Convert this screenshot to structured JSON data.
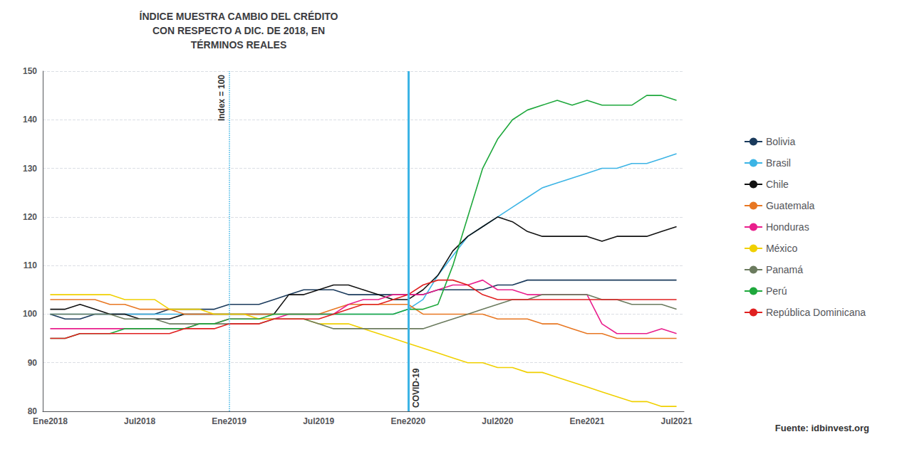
{
  "chart_data": {
    "type": "line",
    "title": "ÍNDICE MUESTRA CAMBIO DEL CRÉDITO\nCON RESPECTO A DIC. DE 2018, EN\nTÉRMINOS REALES",
    "source": "Fuente: idbinvest.org",
    "categories": [
      "Ene2018",
      null,
      null,
      null,
      null,
      null,
      "Jul2018",
      null,
      null,
      null,
      null,
      null,
      "Ene2019",
      null,
      null,
      null,
      null,
      null,
      "Jul2019",
      null,
      null,
      null,
      null,
      null,
      "Ene2020",
      null,
      null,
      null,
      null,
      null,
      "Jul2020",
      null,
      null,
      null,
      null,
      null,
      "Ene2021",
      null,
      null,
      null,
      null,
      null,
      "Jul2021"
    ],
    "ylim": [
      80,
      150
    ],
    "yticks": [
      80,
      90,
      100,
      110,
      120,
      130,
      140,
      150
    ],
    "grid": true,
    "legend": "right",
    "vlines": [
      {
        "x": "Ene2019",
        "label": "Index = 100",
        "color": "#3cb4e5",
        "line_style": "dotted"
      },
      {
        "x": "Ene2020",
        "label": "COVID-19",
        "color": "#3cb4e5",
        "line_style": "solid"
      }
    ],
    "series": [
      {
        "name": "Bolivia",
        "color": "#1a3a5c",
        "values": [
          100,
          99,
          99,
          100,
          100,
          100,
          100,
          100,
          101,
          101,
          101,
          101,
          102,
          102,
          102,
          103,
          104,
          105,
          105,
          105,
          104,
          104,
          104,
          104,
          104,
          104,
          105,
          105,
          105,
          105,
          106,
          106,
          107,
          107,
          107,
          107,
          107,
          107,
          107,
          107,
          107,
          107,
          107
        ]
      },
      {
        "name": "Brasil",
        "color": "#3cb4e5",
        "values": [
          100,
          100,
          100,
          100,
          100,
          100,
          100,
          100,
          100,
          100,
          100,
          100,
          100,
          100,
          100,
          100,
          100,
          100,
          100,
          100,
          100,
          100,
          100,
          100,
          101,
          103,
          108,
          112,
          116,
          118,
          120,
          122,
          124,
          126,
          127,
          128,
          129,
          130,
          130,
          131,
          131,
          132,
          133
        ]
      },
      {
        "name": "Chile",
        "color": "#111111",
        "values": [
          101,
          101,
          102,
          101,
          100,
          100,
          99,
          99,
          99,
          100,
          100,
          100,
          100,
          100,
          100,
          100,
          104,
          104,
          105,
          106,
          106,
          105,
          104,
          103,
          103,
          105,
          108,
          113,
          116,
          118,
          120,
          119,
          117,
          116,
          116,
          116,
          116,
          115,
          116,
          116,
          116,
          117,
          118
        ]
      },
      {
        "name": "Guatemala",
        "color": "#e87722",
        "values": [
          103,
          103,
          103,
          103,
          102,
          102,
          101,
          101,
          101,
          100,
          100,
          100,
          100,
          100,
          100,
          100,
          100,
          100,
          100,
          101,
          102,
          102,
          102,
          102,
          102,
          100,
          100,
          100,
          100,
          100,
          99,
          99,
          99,
          98,
          98,
          97,
          96,
          96,
          95,
          95,
          95,
          95,
          95
        ]
      },
      {
        "name": "Honduras",
        "color": "#e91e8c",
        "values": [
          97,
          97,
          97,
          97,
          97,
          97,
          97,
          97,
          97,
          97,
          98,
          98,
          99,
          99,
          99,
          99,
          100,
          100,
          100,
          100,
          102,
          103,
          103,
          104,
          104,
          104,
          105,
          106,
          106,
          107,
          105,
          105,
          104,
          104,
          104,
          104,
          104,
          98,
          96,
          96,
          96,
          97,
          96
        ]
      },
      {
        "name": "México",
        "color": "#f0d000",
        "values": [
          104,
          104,
          104,
          104,
          104,
          103,
          103,
          103,
          101,
          101,
          101,
          100,
          100,
          100,
          99,
          99,
          99,
          99,
          98,
          98,
          98,
          97,
          96,
          95,
          94,
          93,
          92,
          91,
          90,
          90,
          89,
          89,
          88,
          88,
          87,
          86,
          85,
          84,
          83,
          82,
          82,
          81,
          81
        ]
      },
      {
        "name": "Panamá",
        "color": "#6b7b5e",
        "values": [
          100,
          100,
          100,
          100,
          100,
          99,
          99,
          99,
          98,
          98,
          98,
          98,
          98,
          98,
          98,
          99,
          99,
          99,
          98,
          97,
          97,
          97,
          97,
          97,
          97,
          97,
          98,
          99,
          100,
          101,
          102,
          103,
          103,
          104,
          104,
          104,
          104,
          103,
          103,
          102,
          102,
          102,
          101
        ]
      },
      {
        "name": "Perú",
        "color": "#1ea83c",
        "values": [
          95,
          95,
          96,
          96,
          96,
          97,
          97,
          97,
          97,
          97,
          98,
          98,
          99,
          99,
          99,
          100,
          100,
          100,
          100,
          100,
          100,
          100,
          100,
          100,
          101,
          101,
          102,
          110,
          120,
          130,
          136,
          140,
          142,
          143,
          144,
          143,
          144,
          143,
          143,
          143,
          145,
          145,
          144
        ]
      },
      {
        "name": "República Dominicana",
        "color": "#e02020",
        "values": [
          95,
          95,
          96,
          96,
          96,
          96,
          96,
          96,
          96,
          97,
          97,
          97,
          98,
          98,
          98,
          99,
          99,
          99,
          99,
          100,
          101,
          102,
          102,
          103,
          104,
          106,
          107,
          107,
          106,
          104,
          103,
          103,
          103,
          103,
          103,
          103,
          103,
          103,
          103,
          103,
          103,
          103,
          103
        ]
      }
    ]
  }
}
